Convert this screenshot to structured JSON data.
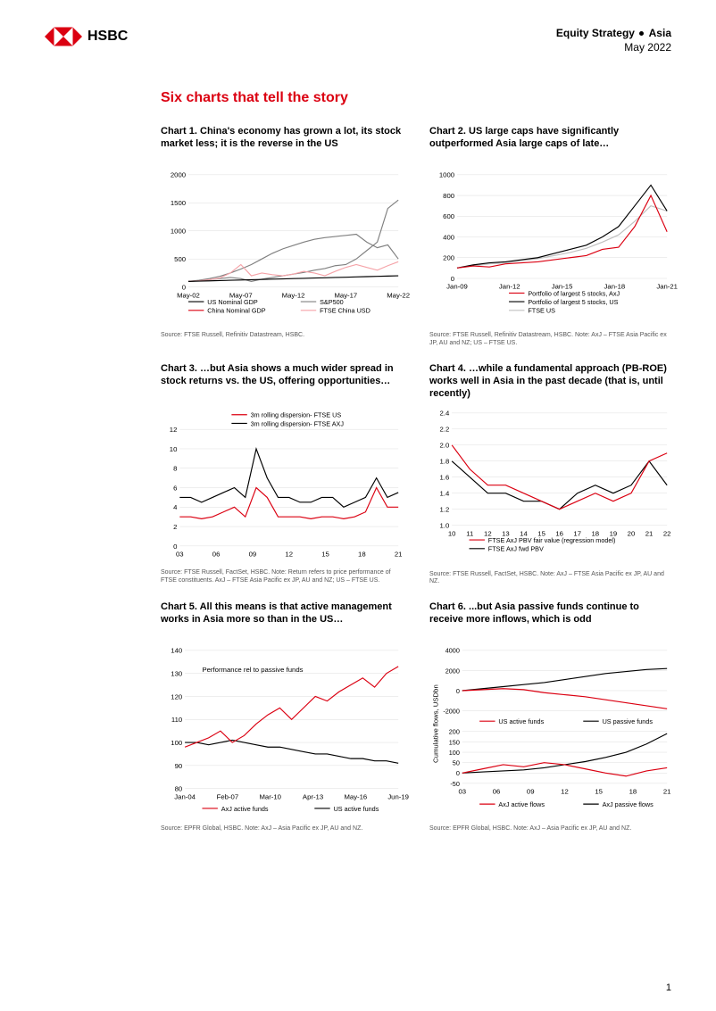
{
  "header": {
    "brand": "HSBC",
    "right_line1_a": "Equity Strategy",
    "right_line1_b": "Asia",
    "right_line2": "May 2022"
  },
  "main_title": "Six charts that tell the story",
  "page_number": "1",
  "charts": {
    "c1": {
      "title": "Chart 1. China's economy has grown a lot, its stock market less; it is the reverse in the US",
      "source": "Source: FTSE Russell, Refinitiv Datastream, HSBC.",
      "ylim": [
        0,
        2000
      ],
      "yticks": [
        0,
        500,
        1000,
        1500,
        2000
      ],
      "xlabels": [
        "May-02",
        "May-07",
        "May-12",
        "May-17",
        "May-22"
      ],
      "legend": [
        "US Nominal GDP",
        "S&P500",
        "China Nominal GDP",
        "FTSE China USD"
      ],
      "colors": [
        "#000000",
        "#808080",
        "#db0011",
        "#f5a3a8"
      ],
      "series": {
        "us_gdp": [
          100,
          105,
          110,
          115,
          120,
          125,
          130,
          135,
          140,
          145,
          150,
          155,
          160,
          165,
          170,
          175,
          180,
          185,
          190,
          195,
          200
        ],
        "sp500": [
          100,
          110,
          130,
          150,
          170,
          150,
          100,
          140,
          170,
          200,
          230,
          260,
          300,
          330,
          380,
          400,
          500,
          650,
          800,
          1400,
          1550
        ],
        "china_gdp": [
          100,
          120,
          150,
          190,
          250,
          320,
          400,
          500,
          600,
          680,
          740,
          800,
          850,
          880,
          900,
          920,
          940,
          800,
          700,
          750,
          500
        ],
        "ftse_china": [
          100,
          110,
          130,
          160,
          250,
          400,
          200,
          250,
          220,
          200,
          230,
          280,
          250,
          200,
          280,
          350,
          400,
          350,
          300,
          380,
          450
        ]
      }
    },
    "c2": {
      "title": "Chart 2. US large caps have significantly outperformed Asia large caps of late…",
      "source": "Source: FTSE Russell, Refinitiv Datastream, HSBC. Note: AxJ – FTSE Asia Pacific ex JP, AU and NZ; US – FTSE US.",
      "ylim": [
        0,
        1000
      ],
      "yticks": [
        0,
        200,
        400,
        600,
        800,
        1000
      ],
      "xlabels": [
        "Jan-09",
        "Jan-12",
        "Jan-15",
        "Jan-18",
        "Jan-21"
      ],
      "legend": [
        "Portfolio of largest 5 stocks, AxJ",
        "Portfolio of largest 5 stocks, US",
        "FTSE US"
      ],
      "colors": [
        "#db0011",
        "#000000",
        "#c0c0c0"
      ],
      "series": {
        "axj5": [
          100,
          120,
          110,
          140,
          150,
          160,
          180,
          200,
          220,
          280,
          300,
          500,
          800,
          450
        ],
        "us5": [
          100,
          130,
          150,
          160,
          180,
          200,
          240,
          280,
          320,
          400,
          500,
          700,
          900,
          650
        ],
        "ftseus": [
          100,
          120,
          140,
          150,
          170,
          190,
          220,
          250,
          290,
          350,
          420,
          550,
          700,
          650
        ]
      }
    },
    "c3": {
      "title": "Chart 3. …but Asia shows a much wider spread in stock returns vs. the US, offering opportunities…",
      "source": "Source: FTSE Russell, FactSet, HSBC. Note: Return refers to price performance of FTSE constituents. AxJ – FTSE Asia Pacific ex JP, AU and NZ; US – FTSE US.",
      "ylim": [
        0,
        12
      ],
      "yticks": [
        0,
        2,
        4,
        6,
        8,
        10,
        12
      ],
      "xlabels": [
        "03",
        "06",
        "09",
        "12",
        "15",
        "18",
        "21"
      ],
      "legend": [
        "3m rolling dispersion- FTSE US",
        "3m rolling dispersion- FTSE AXJ"
      ],
      "colors": [
        "#db0011",
        "#000000"
      ],
      "series": {
        "us": [
          3,
          3,
          2.8,
          3,
          3.5,
          4,
          3,
          6,
          5,
          3,
          3,
          3,
          2.8,
          3,
          3,
          2.8,
          3,
          3.5,
          6,
          4,
          4
        ],
        "axj": [
          5,
          5,
          4.5,
          5,
          5.5,
          6,
          5,
          10,
          7,
          5,
          5,
          4.5,
          4.5,
          5,
          5,
          4,
          4.5,
          5,
          7,
          5,
          5.5
        ]
      }
    },
    "c4": {
      "title": "Chart 4. …while a fundamental approach (PB-ROE) works well in Asia in the past decade (that is, until recently)",
      "source": "Source: FTSE Russell, FactSet, HSBC. Note: AxJ – FTSE Asia Pacific ex JP, AU and NZ.",
      "ylim": [
        1.0,
        2.4
      ],
      "yticks": [
        1.0,
        1.2,
        1.4,
        1.6,
        1.8,
        2.0,
        2.2,
        2.4
      ],
      "xlabels": [
        "10",
        "11",
        "12",
        "13",
        "14",
        "15",
        "16",
        "17",
        "18",
        "19",
        "20",
        "21",
        "22"
      ],
      "legend": [
        "FTSE AxJ PBV fair value (regression model)",
        "FTSE AxJ fwd PBV"
      ],
      "colors": [
        "#db0011",
        "#000000"
      ],
      "series": {
        "fair": [
          2.0,
          1.7,
          1.5,
          1.5,
          1.4,
          1.3,
          1.2,
          1.3,
          1.4,
          1.3,
          1.4,
          1.8,
          1.9
        ],
        "fwd": [
          1.8,
          1.6,
          1.4,
          1.4,
          1.3,
          1.3,
          1.2,
          1.4,
          1.5,
          1.4,
          1.5,
          1.8,
          1.5
        ]
      }
    },
    "c5": {
      "title": "Chart 5. All this means is that active management works in Asia more so than in the US…",
      "source": "Source: EPFR Global, HSBC. Note: AxJ – Asia Pacific ex JP, AU and NZ.",
      "ylim": [
        80,
        140
      ],
      "yticks": [
        80,
        90,
        100,
        110,
        120,
        130,
        140
      ],
      "xlabels": [
        "Jan-04",
        "Feb-07",
        "Mar-10",
        "Apr-13",
        "May-16",
        "Jun-19"
      ],
      "legend": [
        "AxJ active funds",
        "US active funds"
      ],
      "annotation": "Performance rel to passive funds",
      "colors": [
        "#db0011",
        "#000000"
      ],
      "series": {
        "axj": [
          98,
          100,
          102,
          105,
          100,
          103,
          108,
          112,
          115,
          110,
          115,
          120,
          118,
          122,
          125,
          128,
          124,
          130,
          133
        ],
        "us": [
          100,
          100,
          99,
          100,
          101,
          100,
          99,
          98,
          98,
          97,
          96,
          95,
          95,
          94,
          93,
          93,
          92,
          92,
          91
        ]
      }
    },
    "c6": {
      "title": "Chart 6. ...but Asia passive funds continue to receive more inflows, which is  odd",
      "source": "Source: EPFR Global, HSBC. Note: AxJ – Asia Pacific ex JP, AU and NZ.",
      "top_ylim": [
        -2000,
        4000
      ],
      "top_yticks": [
        -2000,
        0,
        2000,
        4000
      ],
      "bot_ylim": [
        -50,
        200
      ],
      "bot_yticks": [
        -50,
        0,
        50,
        100,
        150,
        200
      ],
      "xlabels": [
        "03",
        "06",
        "09",
        "12",
        "15",
        "18",
        "21"
      ],
      "ylabel": "Cumulative flows, USDbn",
      "top_legend": [
        "US active funds",
        "US passive funds"
      ],
      "bot_legend": [
        "AxJ active flows",
        "AxJ passive flows"
      ],
      "colors": [
        "#db0011",
        "#000000"
      ],
      "series": {
        "us_active": [
          0,
          100,
          200,
          100,
          -200,
          -400,
          -600,
          -900,
          -1200,
          -1500,
          -1800
        ],
        "us_passive": [
          0,
          200,
          400,
          600,
          800,
          1100,
          1400,
          1700,
          1900,
          2100,
          2200
        ],
        "axj_active": [
          0,
          20,
          40,
          30,
          50,
          40,
          20,
          0,
          -15,
          10,
          25
        ],
        "axj_passive": [
          0,
          5,
          10,
          15,
          25,
          40,
          55,
          75,
          100,
          140,
          190
        ]
      }
    }
  }
}
